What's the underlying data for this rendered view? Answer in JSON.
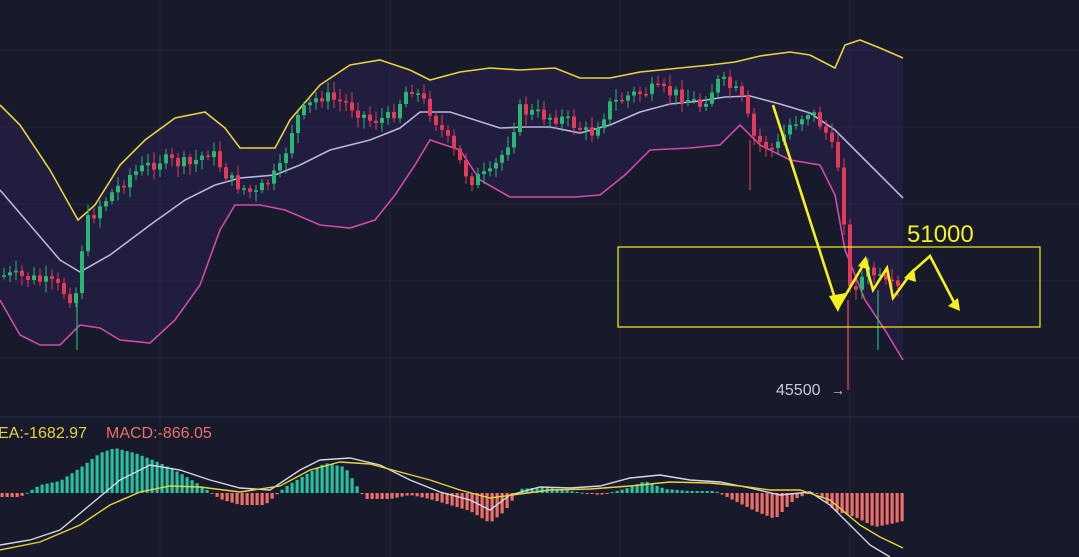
{
  "colors": {
    "background": "#161a2b",
    "up": "#2bb673",
    "down": "#e23b5a",
    "upper_band": "#e8d33a",
    "middle_band": "#b9b6de",
    "lower_band": "#d24aa7",
    "band_fill": "#2b2150",
    "annotation": "#f6f01c",
    "macd_pos": "#25c2a0",
    "macd_neg": "#ee6e6a",
    "dif_line": "#d6d6e6",
    "dea_line": "#e8d33a"
  },
  "annotations": {
    "target_label": "51000",
    "low_label": "45500",
    "low_arrow": "→"
  },
  "macd_header": {
    "dea_text": "EA:-1682.97",
    "macd_text": "MACD:-866.05"
  },
  "chart_data": [
    {
      "type": "candlestick",
      "indicators": [
        "Bollinger Bands (upper, middle, lower)"
      ],
      "annotation_box_price_range": [
        49000,
        51000
      ],
      "marked_prices": [
        51000,
        45500
      ],
      "approx_price_extent": [
        45000,
        58000
      ],
      "grid": true
    },
    {
      "type": "bar",
      "indicator": "MACD",
      "dea": -1682.97,
      "macd": -866.05
    }
  ]
}
